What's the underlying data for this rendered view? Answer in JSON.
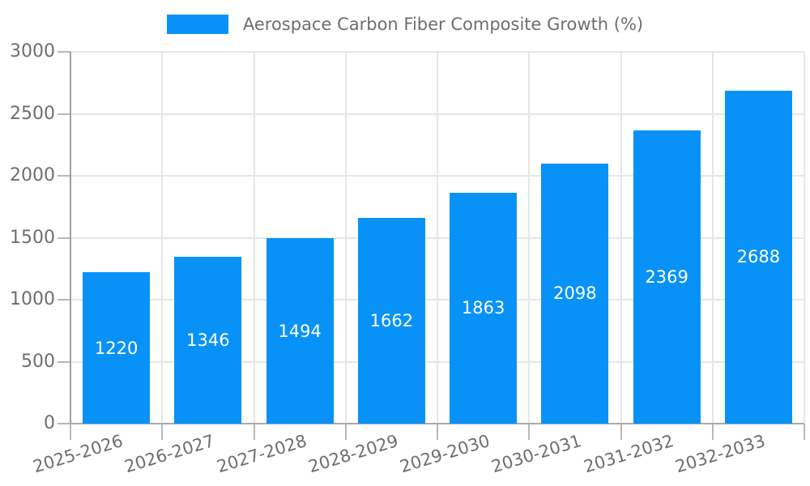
{
  "chart_data": {
    "type": "bar",
    "title": "Aerospace Carbon Fiber Composite Growth (%)",
    "categories": [
      "2025-2026",
      "2026-2027",
      "2027-2028",
      "2028-2029",
      "2029-2030",
      "2030-2031",
      "2031-2032",
      "2032-2033"
    ],
    "values": [
      1220,
      1346,
      1494,
      1662,
      1863,
      2098,
      2369,
      2688
    ],
    "xlabel": "",
    "ylabel": "",
    "ylim": [
      0,
      3000
    ],
    "yticks": [
      0,
      500,
      1000,
      1500,
      2000,
      2500,
      3000
    ],
    "grid": true,
    "legend_position": "top-center",
    "value_labels": "inside-center",
    "colors": {
      "bar": "#0892f8",
      "gridline": "#e6e6e6",
      "axis": "#a4a4a4",
      "axis_text": "#6e6e6e",
      "value_text": "#ffffff",
      "background": "#ffffff"
    }
  }
}
